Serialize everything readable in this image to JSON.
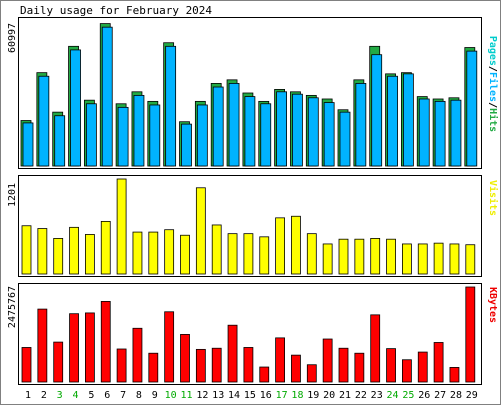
{
  "title": "Daily usage for February 2024",
  "chart_data": [
    {
      "type": "bar",
      "panel": "pages-files-hits",
      "ymax_label": "60997",
      "ylim": [
        0,
        60997
      ],
      "legend": {
        "pages": {
          "text": "Pages",
          "color": "#00cccc"
        },
        "files": {
          "text": "Files",
          "color": "#00b3ff"
        },
        "hits": {
          "text": "Hits",
          "color": "#22aa44"
        }
      },
      "separator": "/",
      "categories": [
        "1",
        "2",
        "3",
        "4",
        "5",
        "6",
        "7",
        "8",
        "9",
        "10",
        "11",
        "12",
        "13",
        "14",
        "15",
        "16",
        "17",
        "18",
        "19",
        "20",
        "21",
        "22",
        "23",
        "24",
        "25",
        "26",
        "27",
        "28",
        "29"
      ],
      "series": [
        {
          "name": "Hits",
          "color": "#22aa44",
          "values": [
            19000,
            39000,
            22500,
            50000,
            27500,
            59500,
            26000,
            31000,
            27000,
            51500,
            18500,
            27000,
            34500,
            36000,
            30500,
            27000,
            32000,
            31000,
            29500,
            28000,
            23500,
            36000,
            50000,
            38500,
            39000,
            29000,
            28000,
            28500,
            49500
          ]
        },
        {
          "name": "Files",
          "color": "#00b3ff",
          "values": [
            18000,
            37500,
            21000,
            48500,
            26000,
            58000,
            24500,
            29500,
            25500,
            50000,
            17500,
            25500,
            33000,
            34500,
            29000,
            26000,
            31000,
            30000,
            28500,
            26500,
            22500,
            34500,
            46500,
            37500,
            38500,
            28000,
            27000,
            27500,
            48000
          ]
        }
      ]
    },
    {
      "type": "bar",
      "panel": "visits",
      "ymax_label": "1201",
      "ylim": [
        0,
        1201
      ],
      "legend": {
        "text": "Visits",
        "color": "#eeee00"
      },
      "categories": [
        "1",
        "2",
        "3",
        "4",
        "5",
        "6",
        "7",
        "8",
        "9",
        "10",
        "11",
        "12",
        "13",
        "14",
        "15",
        "16",
        "17",
        "18",
        "19",
        "20",
        "21",
        "22",
        "23",
        "24",
        "25",
        "26",
        "27",
        "28",
        "29"
      ],
      "series": [
        {
          "name": "Visits",
          "color": "#ffff00",
          "values": [
            610,
            575,
            450,
            590,
            500,
            665,
            1201,
            530,
            530,
            560,
            490,
            1090,
            620,
            510,
            510,
            470,
            710,
            730,
            510,
            380,
            440,
            440,
            450,
            440,
            380,
            380,
            390,
            380,
            370
          ]
        }
      ]
    },
    {
      "type": "bar",
      "panel": "kbytes",
      "ymax_label": "2475767",
      "ylim": [
        0,
        2475767
      ],
      "legend": {
        "text": "KBytes",
        "color": "#ee0000"
      },
      "categories": [
        "1",
        "2",
        "3",
        "4",
        "5",
        "6",
        "7",
        "8",
        "9",
        "10",
        "11",
        "12",
        "13",
        "14",
        "15",
        "16",
        "17",
        "18",
        "19",
        "20",
        "21",
        "22",
        "23",
        "24",
        "25",
        "26",
        "27",
        "28",
        "29"
      ],
      "weekend_days": [
        "3",
        "4",
        "10",
        "11",
        "17",
        "18",
        "24",
        "25"
      ],
      "weekend_color": "#00aa00",
      "weekday_color": "#000000",
      "series": [
        {
          "name": "KBytes",
          "color": "#ff0000",
          "values": [
            900000,
            1900000,
            1040000,
            1780000,
            1800000,
            2100000,
            860000,
            1400000,
            750000,
            1830000,
            1240000,
            850000,
            880000,
            1480000,
            900000,
            390000,
            1150000,
            700000,
            450000,
            1120000,
            880000,
            750000,
            1750000,
            870000,
            580000,
            780000,
            1030000,
            380000,
            2475767
          ]
        }
      ]
    }
  ]
}
